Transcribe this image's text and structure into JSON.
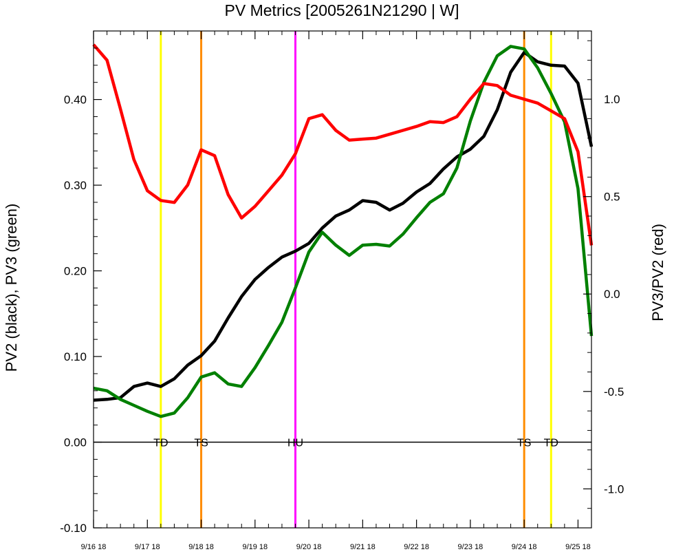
{
  "chart_data": {
    "type": "line",
    "title": "PV Metrics [2005261N21290 | W]",
    "ylabel_left": "PV2 (black), PV3 (green)",
    "ylabel_right": "PV3/PV2 (red)",
    "xlabel": "",
    "x_ticks": [
      {
        "label": "9/16 18",
        "t": 0
      },
      {
        "label": "9/17 18",
        "t": 1
      },
      {
        "label": "9/18 18",
        "t": 2
      },
      {
        "label": "9/19 18",
        "t": 3
      },
      {
        "label": "9/20 18",
        "t": 4
      },
      {
        "label": "9/21 18",
        "t": 5
      },
      {
        "label": "9/22 18",
        "t": 6
      },
      {
        "label": "9/23 18",
        "t": 7
      },
      {
        "label": "9/24 18",
        "t": 8
      },
      {
        "label": "9/25 18",
        "t": 9
      }
    ],
    "xlim": [
      0,
      9.25
    ],
    "ylim_left": [
      -0.1,
      0.48
    ],
    "yticks_left": [
      {
        "v": -0.1,
        "label": "-0.10"
      },
      {
        "v": 0.0,
        "label": "0.00"
      },
      {
        "v": 0.1,
        "label": "0.10"
      },
      {
        "v": 0.2,
        "label": "0.20"
      },
      {
        "v": 0.3,
        "label": "0.30"
      },
      {
        "v": 0.4,
        "label": "0.40"
      }
    ],
    "ylim_right": [
      -1.2,
      1.35
    ],
    "yticks_right": [
      {
        "v": -1.0,
        "label": "-1.0"
      },
      {
        "v": -0.5,
        "label": "-0.5"
      },
      {
        "v": 0.0,
        "label": "0.0"
      },
      {
        "v": 0.5,
        "label": "0.5"
      },
      {
        "v": 1.0,
        "label": "1.0"
      }
    ],
    "zero_line": 0,
    "series": [
      {
        "color": "#000000",
        "axis": "left",
        "x": [
          0,
          0.25,
          0.5,
          0.75,
          1,
          1.25,
          1.5,
          1.75,
          2,
          2.25,
          2.5,
          2.75,
          3,
          3.25,
          3.5,
          3.75,
          4,
          4.25,
          4.5,
          4.75,
          5,
          5.25,
          5.5,
          5.75,
          6,
          6.25,
          6.5,
          6.75,
          7,
          7.25,
          7.5,
          7.75,
          8,
          8.25,
          8.5,
          8.75,
          9,
          9.25
        ],
        "values": [
          0.049,
          0.05,
          0.052,
          0.065,
          0.069,
          0.065,
          0.074,
          0.09,
          0.101,
          0.118,
          0.145,
          0.17,
          0.19,
          0.204,
          0.216,
          0.223,
          0.232,
          0.25,
          0.264,
          0.271,
          0.282,
          0.28,
          0.271,
          0.279,
          0.292,
          0.302,
          0.319,
          0.333,
          0.342,
          0.357,
          0.388,
          0.432,
          0.455,
          0.444,
          0.44,
          0.439,
          0.419,
          0.345
        ]
      },
      {
        "color": "#008000",
        "axis": "left",
        "x": [
          0,
          0.25,
          0.5,
          0.75,
          1,
          1.25,
          1.5,
          1.75,
          2,
          2.25,
          2.5,
          2.75,
          3,
          3.25,
          3.5,
          3.75,
          4,
          4.25,
          4.5,
          4.75,
          5,
          5.25,
          5.5,
          5.75,
          6,
          6.25,
          6.5,
          6.75,
          7,
          7.25,
          7.5,
          7.75,
          8,
          8.25,
          8.5,
          8.75,
          9,
          9.25
        ],
        "values": [
          0.063,
          0.06,
          0.05,
          0.043,
          0.036,
          0.03,
          0.034,
          0.052,
          0.076,
          0.081,
          0.068,
          0.065,
          0.087,
          0.113,
          0.14,
          0.18,
          0.222,
          0.245,
          0.23,
          0.218,
          0.23,
          0.231,
          0.229,
          0.243,
          0.262,
          0.28,
          0.29,
          0.32,
          0.375,
          0.42,
          0.451,
          0.462,
          0.459,
          0.437,
          0.407,
          0.374,
          0.296,
          0.124
        ]
      },
      {
        "color": "#ff0000",
        "axis": "right",
        "x": [
          0,
          0.25,
          0.5,
          0.75,
          1,
          1.25,
          1.5,
          1.75,
          2,
          2.25,
          2.5,
          2.75,
          3,
          3.25,
          3.5,
          3.75,
          4,
          4.25,
          4.5,
          4.75,
          5,
          5.25,
          5.5,
          5.75,
          6,
          6.25,
          6.5,
          6.75,
          7,
          7.25,
          7.5,
          7.75,
          8,
          8.25,
          8.5,
          8.75,
          9,
          9.25
        ],
        "values": [
          1.28,
          1.2,
          0.95,
          0.69,
          0.53,
          0.48,
          0.47,
          0.56,
          0.74,
          0.71,
          0.51,
          0.39,
          0.45,
          0.53,
          0.61,
          0.72,
          0.9,
          0.92,
          0.84,
          0.79,
          0.795,
          0.8,
          0.82,
          0.84,
          0.86,
          0.885,
          0.88,
          0.91,
          1.0,
          1.08,
          1.07,
          1.02,
          1.0,
          0.98,
          0.94,
          0.9,
          0.73,
          0.25
        ]
      }
    ],
    "events": [
      {
        "label": "TD",
        "t": 1.25,
        "color": "#ffff00"
      },
      {
        "label": "TS",
        "t": 2.0,
        "color": "#ff8c00"
      },
      {
        "label": "HU",
        "t": 3.75,
        "color": "#ff00ff"
      },
      {
        "label": "TS",
        "t": 8.0,
        "color": "#ff8c00"
      },
      {
        "label": "TD",
        "t": 8.5,
        "color": "#ffff00"
      }
    ],
    "grid": false,
    "legend": "none"
  }
}
